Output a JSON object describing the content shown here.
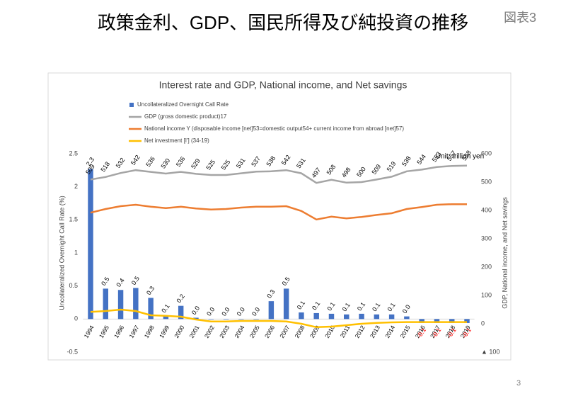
{
  "header": {
    "title": "政策金利、GDP、国民所得及び純投資の推移",
    "figure_label": "図表3"
  },
  "page_number": "3",
  "chart_data": {
    "type": "bar-line",
    "title": "Interest rate and GDP, National income, and Net savings",
    "y_label": "Uncollateralized Overnight Call Rate (%)",
    "y2_label": "GDP, National income, and Net savings",
    "annotation": "Unit: trillion yen",
    "categories": [
      "1994",
      "1995",
      "1996",
      "1997",
      "1998",
      "1999",
      "2000",
      "2001",
      "2002",
      "2003",
      "2004",
      "2005",
      "2006",
      "2007",
      "2008",
      "2009",
      "2010",
      "2011",
      "2012",
      "2013",
      "2014",
      "2015",
      "2016",
      "2017",
      "2018",
      "2019"
    ],
    "ylim": [
      -0.5,
      2.5
    ],
    "yticks": [
      {
        "value": -0.5,
        "label": "-0.5"
      },
      {
        "value": 0,
        "label": "0"
      },
      0.5,
      1,
      1.5,
      2,
      2.5
    ],
    "y2lim": [
      -100,
      600
    ],
    "y2ticks": [
      {
        "value": -100,
        "label": "▲ 100"
      },
      0,
      100,
      200,
      300,
      400,
      500,
      600
    ],
    "negative_label_color": "#ff0000",
    "series": [
      {
        "name": "Uncollateralized Overnight Call Rate",
        "color": "#4472c4",
        "kind": "bar",
        "values": [
          2.27,
          0.46,
          0.44,
          0.47,
          0.32,
          0.05,
          0.2,
          0.02,
          0.002,
          0.001,
          0.001,
          0.001,
          0.27,
          0.46,
          0.1,
          0.09,
          0.08,
          0.07,
          0.08,
          0.07,
          0.07,
          0.04,
          -0.06,
          -0.06,
          -0.06,
          -0.06
        ],
        "value_labels": [
          "2.3",
          "0.5",
          "0.4",
          "0.5",
          "0.3",
          "0.1",
          "0.2",
          "0.0",
          "0.0",
          "0.0",
          "0.0",
          "0.0",
          "0.3",
          "0.5",
          "0.1",
          "0.1",
          "0.1",
          "0.1",
          "0.1",
          "0.1",
          "0.1",
          "0.0",
          "-0.1",
          "-0.1",
          "-0.1",
          "-0.1"
        ]
      },
      {
        "name": "GDP (gross domestic product)17",
        "color": "#a5a5a5",
        "kind": "line",
        "axis": "y2",
        "labels": true,
        "values": [
          509,
          518,
          532,
          542,
          536,
          530,
          536,
          529,
          525,
          525,
          531,
          537,
          538,
          542,
          531,
          497,
          508,
          498,
          500,
          509,
          519,
          538,
          544,
          553,
          557,
          558
        ]
      },
      {
        "name": "National income Y (disposable income [net]53=domestic output54+ current income from abroad [net]57)",
        "color": "#ed7d31",
        "kind": "line",
        "axis": "y2",
        "values": [
          392,
          405,
          415,
          420,
          413,
          408,
          413,
          407,
          403,
          405,
          410,
          413,
          413,
          415,
          398,
          368,
          378,
          372,
          377,
          384,
          390,
          405,
          412,
          420,
          422,
          422
        ]
      },
      {
        "name": "Net investment [I'] (34-19)",
        "color": "#ffc000",
        "kind": "line",
        "axis": "y2",
        "values": [
          42,
          45,
          50,
          45,
          30,
          28,
          25,
          15,
          8,
          8,
          10,
          10,
          10,
          8,
          0,
          -12,
          -10,
          -5,
          0,
          3,
          5,
          6,
          6,
          6,
          6,
          6
        ]
      }
    ]
  }
}
